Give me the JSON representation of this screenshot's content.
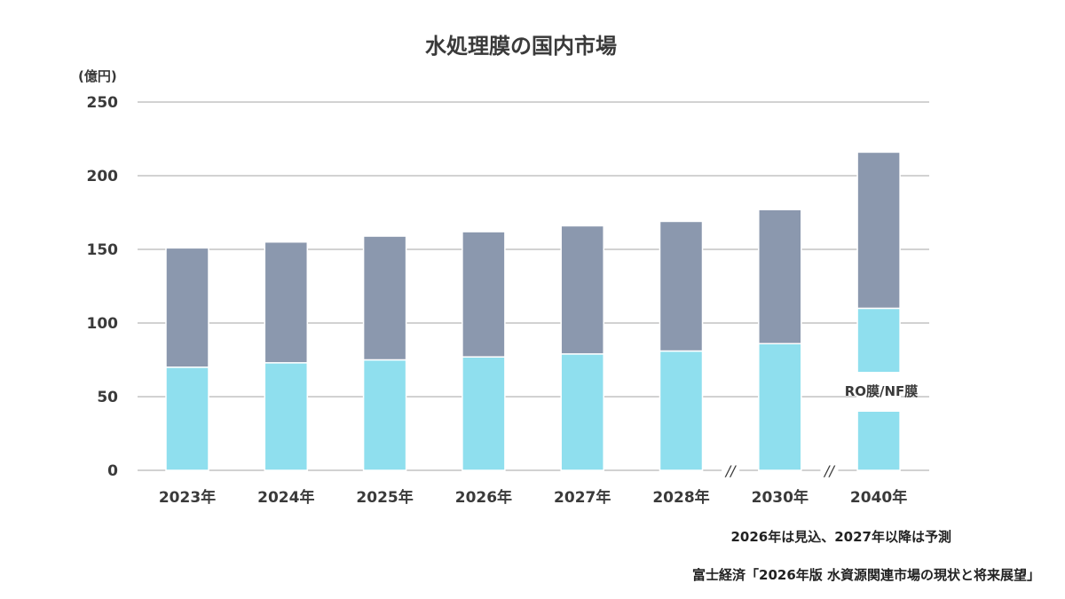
{
  "chart_data": {
    "type": "bar",
    "stacked": true,
    "title": "水処理膜の国内市場",
    "ylabel": "(億円)",
    "ylim": [
      0,
      250
    ],
    "yticks": [
      0,
      50,
      100,
      150,
      200,
      250
    ],
    "grid": true,
    "categories": [
      "2023年",
      "2024年",
      "2025年",
      "2026年",
      "2027年",
      "2028年",
      "2030年",
      "2040年"
    ],
    "axis_breaks_before": [
      "2030年",
      "2040年"
    ],
    "series": [
      {
        "name": "RO膜/NF膜",
        "color": "#8fdfee",
        "values": [
          70,
          73,
          75,
          77,
          79,
          81,
          86,
          110
        ]
      },
      {
        "color": "#8b98ae",
        "values": [
          81,
          82,
          84,
          85,
          87,
          88,
          91,
          106
        ]
      }
    ],
    "annotation": "RO膜/NF膜",
    "notes": [
      "2026年は見込、2027年以降は予測"
    ],
    "source": "富士経済「2026年版 水資源関連市場の現状と将来展望」"
  }
}
